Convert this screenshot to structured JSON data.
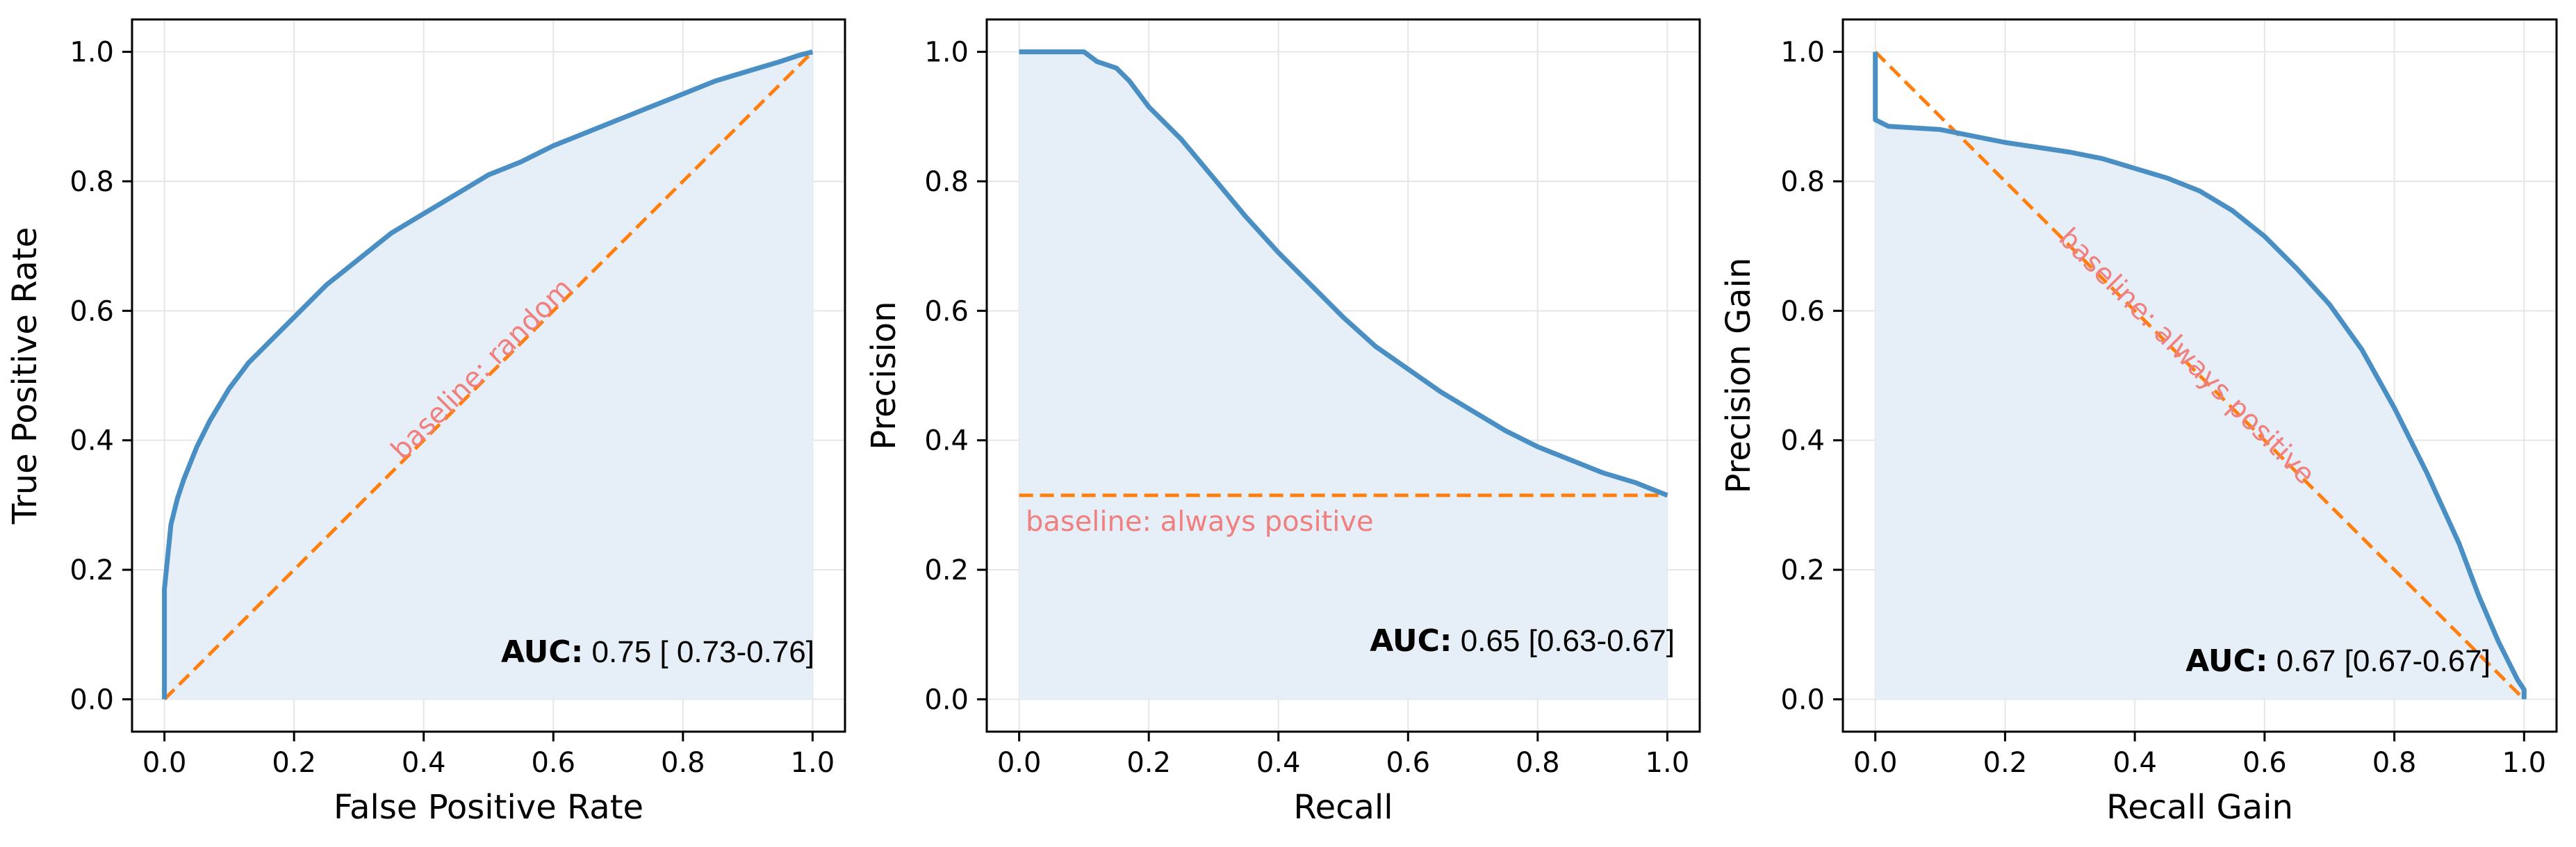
{
  "colors": {
    "curve": "#4A8FC4",
    "fill": "#E6EFF7",
    "baseline": "#FF7F0E",
    "baseline_text": "#F08080",
    "grid": "#E6E6E6"
  },
  "chart_data": [
    {
      "type": "line",
      "xlabel": "False Positive Rate",
      "ylabel": "True Positive Rate",
      "xlim": [
        -0.05,
        1.05
      ],
      "ylim": [
        -0.05,
        1.05
      ],
      "xticks": [
        "0.0",
        "0.2",
        "0.4",
        "0.6",
        "0.8",
        "1.0"
      ],
      "yticks": [
        "0.0",
        "0.2",
        "0.4",
        "0.6",
        "0.8",
        "1.0"
      ],
      "grid": true,
      "fill_under_curve": true,
      "curve": {
        "x": [
          0,
          0,
          0.005,
          0.01,
          0.02,
          0.03,
          0.05,
          0.07,
          0.1,
          0.13,
          0.16,
          0.2,
          0.25,
          0.3,
          0.35,
          0.4,
          0.45,
          0.5,
          0.55,
          0.6,
          0.65,
          0.7,
          0.75,
          0.8,
          0.85,
          0.9,
          0.95,
          0.98,
          1.0
        ],
        "y": [
          0,
          0.17,
          0.22,
          0.27,
          0.31,
          0.34,
          0.39,
          0.43,
          0.48,
          0.52,
          0.55,
          0.59,
          0.64,
          0.68,
          0.72,
          0.75,
          0.78,
          0.81,
          0.83,
          0.855,
          0.875,
          0.895,
          0.915,
          0.935,
          0.955,
          0.97,
          0.985,
          0.995,
          1.0
        ]
      },
      "baseline": {
        "x": [
          0,
          1
        ],
        "y": [
          0,
          1
        ],
        "label": "baseline: random",
        "label_at": [
          0.5,
          0.5
        ],
        "label_angle": -45
      },
      "auc": {
        "key": "AUC",
        "value": "0.75 [ 0.73-0.76]"
      }
    },
    {
      "type": "line",
      "xlabel": "Recall",
      "ylabel": "Precision",
      "xlim": [
        -0.05,
        1.05
      ],
      "ylim": [
        -0.05,
        1.05
      ],
      "xticks": [
        "0.0",
        "0.2",
        "0.4",
        "0.6",
        "0.8",
        "1.0"
      ],
      "yticks": [
        "0.0",
        "0.2",
        "0.4",
        "0.6",
        "0.8",
        "1.0"
      ],
      "grid": true,
      "fill_under_curve": true,
      "curve": {
        "x": [
          0,
          0.05,
          0.1,
          0.12,
          0.15,
          0.17,
          0.2,
          0.25,
          0.3,
          0.35,
          0.4,
          0.45,
          0.5,
          0.55,
          0.6,
          0.65,
          0.7,
          0.75,
          0.8,
          0.85,
          0.9,
          0.95,
          1.0
        ],
        "y": [
          1.0,
          1.0,
          1.0,
          0.985,
          0.975,
          0.955,
          0.915,
          0.865,
          0.805,
          0.745,
          0.69,
          0.64,
          0.59,
          0.545,
          0.51,
          0.475,
          0.445,
          0.415,
          0.39,
          0.37,
          0.35,
          0.335,
          0.315
        ]
      },
      "baseline": {
        "x": [
          0,
          1
        ],
        "y": [
          0.315,
          0.315
        ],
        "label": "baseline: always positive",
        "label_at": [
          0.01,
          0.26
        ],
        "label_angle": 0
      },
      "auc": {
        "key": "AUC",
        "value": "0.65 [0.63-0.67]"
      }
    },
    {
      "type": "line",
      "xlabel": "Recall Gain",
      "ylabel": "Precision Gain",
      "xlim": [
        -0.05,
        1.05
      ],
      "ylim": [
        -0.05,
        1.05
      ],
      "xticks": [
        "0.0",
        "0.2",
        "0.4",
        "0.6",
        "0.8",
        "1.0"
      ],
      "yticks": [
        "0.0",
        "0.2",
        "0.4",
        "0.6",
        "0.8",
        "1.0"
      ],
      "grid": true,
      "fill_under_curve": true,
      "curve": {
        "x": [
          0,
          0,
          0.02,
          0.1,
          0.2,
          0.3,
          0.35,
          0.4,
          0.45,
          0.5,
          0.55,
          0.6,
          0.65,
          0.7,
          0.75,
          0.8,
          0.85,
          0.9,
          0.93,
          0.96,
          0.98,
          0.99,
          1.0,
          1.0
        ],
        "y": [
          1.0,
          0.895,
          0.885,
          0.88,
          0.86,
          0.845,
          0.835,
          0.82,
          0.805,
          0.785,
          0.755,
          0.715,
          0.665,
          0.61,
          0.54,
          0.45,
          0.35,
          0.24,
          0.16,
          0.09,
          0.05,
          0.03,
          0.015,
          0.0
        ]
      },
      "baseline": {
        "x": [
          0,
          1
        ],
        "y": [
          1,
          0
        ],
        "label": "baseline: always positive",
        "label_at": [
          0.47,
          0.52
        ],
        "label_angle": 45
      },
      "auc": {
        "key": "AUC",
        "value": "0.67 [0.67-0.67]"
      }
    }
  ]
}
